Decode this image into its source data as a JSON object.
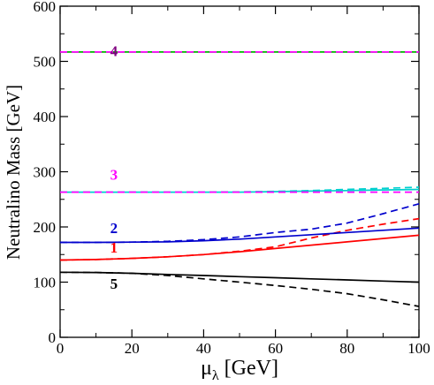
{
  "chart_data": {
    "type": "line",
    "xlabel_main": "μ",
    "xlabel_sub": "λ",
    "xlabel_unit": "[GeV]",
    "ylabel": "Neutralino Mass [GeV]",
    "xlim": [
      0,
      100
    ],
    "ylim": [
      0,
      600
    ],
    "xticks": [
      0,
      20,
      40,
      60,
      80,
      100
    ],
    "yticks": [
      0,
      100,
      200,
      300,
      400,
      500,
      600
    ],
    "grid": false,
    "legend": "none",
    "x": [
      0,
      10,
      20,
      30,
      40,
      50,
      60,
      70,
      80,
      90,
      100
    ],
    "series": [
      {
        "color": "#000000",
        "dash": "solid",
        "values": [
          118,
          117.5,
          116,
          114,
          112,
          110,
          108,
          106,
          104,
          102,
          100
        ]
      },
      {
        "color": "#000000",
        "dash": "dashed",
        "values": [
          118,
          117.5,
          116,
          112,
          106,
          100,
          94,
          87,
          79,
          68,
          56
        ]
      },
      {
        "color": "#ff0000",
        "dash": "solid",
        "values": [
          140,
          141,
          143,
          146,
          150,
          155,
          161,
          167,
          173,
          179,
          185
        ]
      },
      {
        "color": "#ff0000",
        "dash": "dashed",
        "values": [
          140,
          141,
          143,
          146,
          150,
          156,
          164,
          180,
          194,
          205,
          215
        ]
      },
      {
        "color": "#0000cd",
        "dash": "solid",
        "values": [
          172,
          172,
          172.5,
          173,
          175,
          178,
          182,
          186,
          190,
          194,
          198
        ]
      },
      {
        "color": "#0000cd",
        "dash": "dashed",
        "values": [
          172,
          172,
          172.5,
          174,
          177,
          182,
          190,
          196,
          207,
          224,
          242
        ]
      },
      {
        "color": "#00cfcf",
        "dash": "solid",
        "values": [
          263,
          263,
          263,
          263,
          263,
          263,
          264,
          265,
          266,
          267,
          268
        ]
      },
      {
        "color": "#00cfcf",
        "dash": "dashed",
        "values": [
          263,
          263,
          263,
          263,
          263,
          263.5,
          264.5,
          266,
          268,
          270,
          272
        ]
      },
      {
        "color": "#ff00ff",
        "dash": "dashed",
        "values": [
          263,
          263,
          263,
          263,
          263,
          263,
          263,
          263,
          263,
          263,
          263
        ]
      },
      {
        "color": "#00b400",
        "dash": "solid",
        "values": [
          517,
          517,
          517,
          517,
          517,
          517,
          517,
          517,
          517,
          517,
          517
        ]
      },
      {
        "color": "#ff00ff",
        "dash": "dashed",
        "values": [
          517,
          517,
          517,
          517,
          517,
          517,
          517,
          517,
          517,
          517,
          517
        ]
      }
    ],
    "annotations": [
      {
        "text": "4",
        "x": 15,
        "y": 510,
        "color": "#800080"
      },
      {
        "text": "3",
        "x": 15,
        "y": 286,
        "color": "#ff00ff"
      },
      {
        "text": "2",
        "x": 15,
        "y": 189,
        "color": "#0000cd"
      },
      {
        "text": "1",
        "x": 15,
        "y": 154,
        "color": "#ff0000"
      },
      {
        "text": "5",
        "x": 15,
        "y": 88,
        "color": "#000000"
      }
    ]
  }
}
